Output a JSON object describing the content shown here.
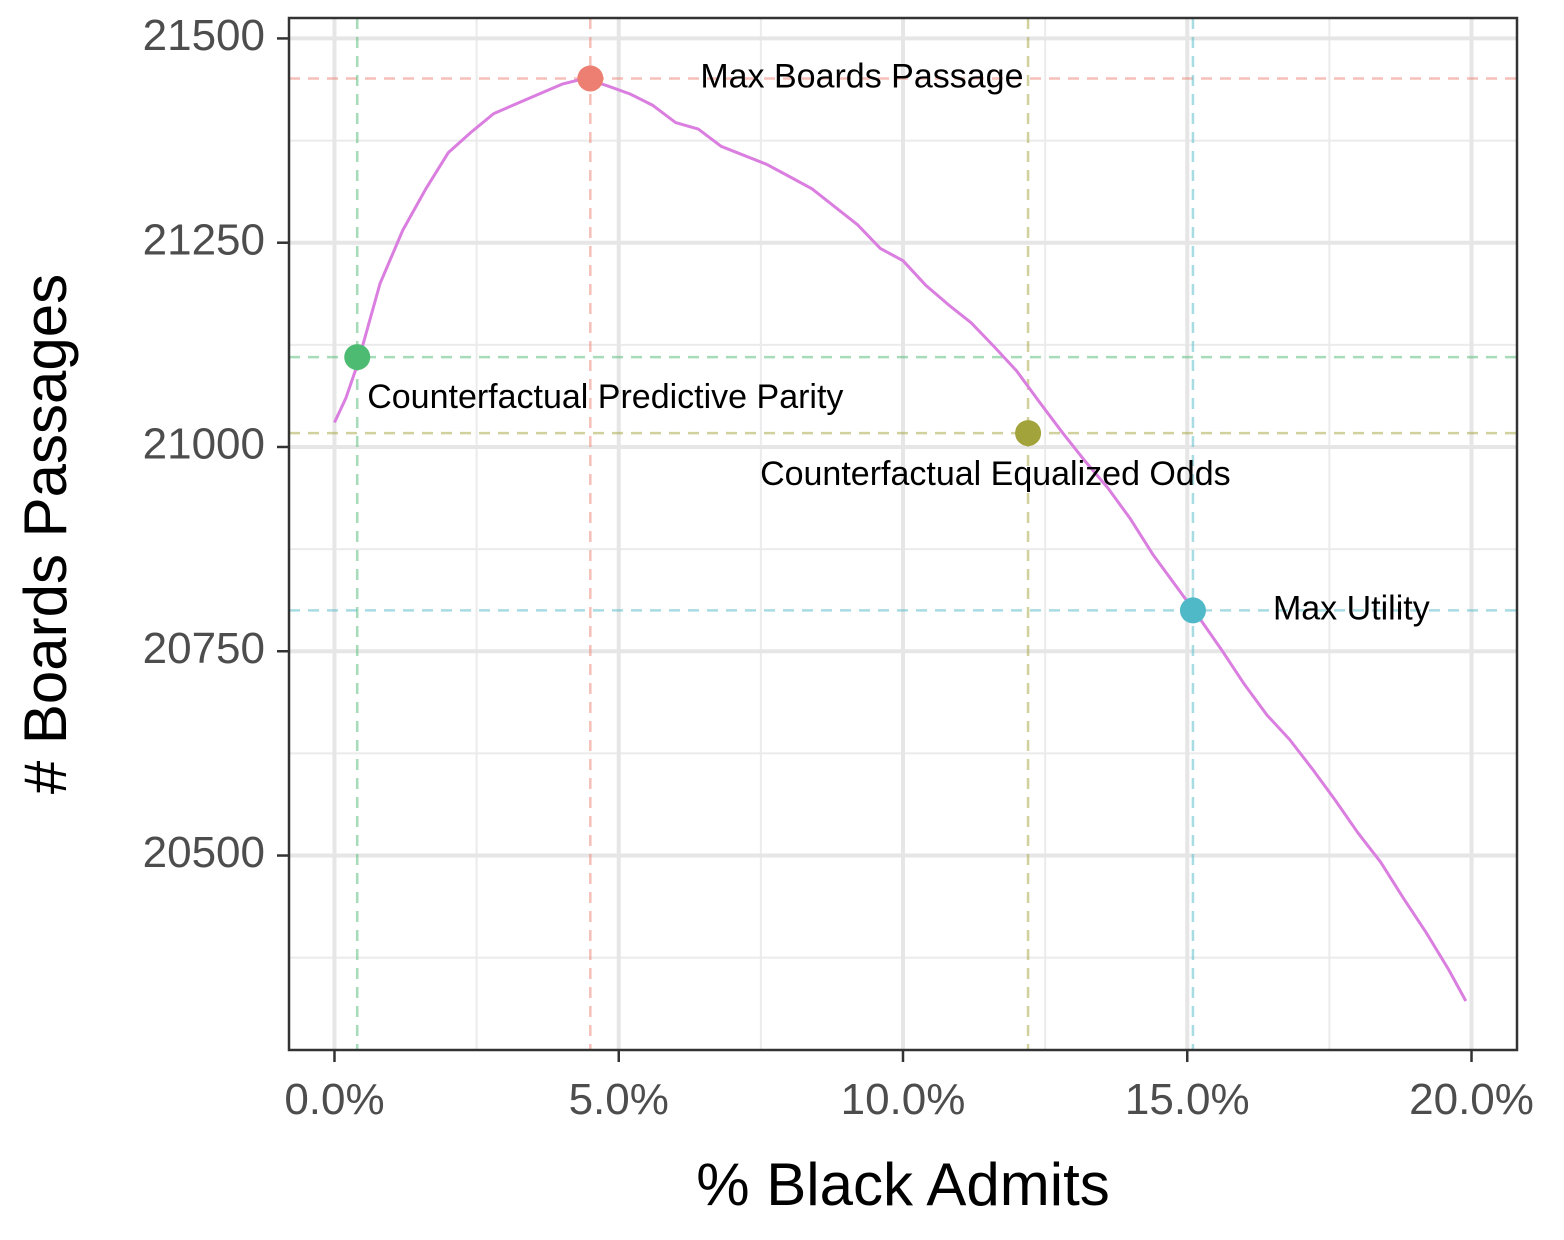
{
  "chart_data": {
    "type": "line",
    "xlabel": "% Black Admits",
    "ylabel": "# Boards Passages",
    "xlim": [
      -0.8,
      20.8
    ],
    "ylim": [
      20262,
      21525
    ],
    "x_ticks": [
      0,
      5,
      10,
      15,
      20
    ],
    "x_tick_labels": [
      "0.0%",
      "5.0%",
      "10.0%",
      "15.0%",
      "20.0%"
    ],
    "x_minor_ticks": [
      2.5,
      7.5,
      12.5,
      17.5
    ],
    "y_ticks": [
      20500,
      20750,
      21000,
      21250,
      21500
    ],
    "y_tick_labels": [
      "20500",
      "20750",
      "21000",
      "21250",
      "21500"
    ],
    "y_minor_ticks": [
      20375,
      20625,
      20875,
      21125,
      21375
    ],
    "grid": true,
    "series": [
      {
        "color": "#da7ee0",
        "x": [
          0.0,
          0.2,
          0.4,
          0.6,
          0.8,
          1.2,
          1.6,
          2.0,
          2.4,
          2.8,
          3.2,
          3.6,
          4.0,
          4.4,
          4.8,
          5.2,
          5.6,
          6.0,
          6.4,
          6.8,
          7.2,
          7.6,
          8.0,
          8.4,
          8.8,
          9.2,
          9.6,
          10.0,
          10.4,
          10.8,
          11.2,
          11.6,
          12.0,
          12.4,
          12.8,
          13.2,
          13.6,
          14.0,
          14.4,
          14.8,
          15.2,
          15.6,
          16.0,
          16.4,
          16.8,
          17.2,
          17.6,
          18.0,
          18.4,
          18.8,
          19.2,
          19.6,
          19.9
        ],
        "y": [
          21030,
          21060,
          21100,
          21150,
          21200,
          21265,
          21315,
          21360,
          21385,
          21408,
          21420,
          21432,
          21444,
          21451,
          21442,
          21432,
          21418,
          21397,
          21389,
          21368,
          21357,
          21346,
          21331,
          21316,
          21294,
          21272,
          21243,
          21228,
          21198,
          21174,
          21152,
          21123,
          21093,
          21055,
          21018,
          20983,
          20950,
          20912,
          20868,
          20830,
          20792,
          20752,
          20710,
          20672,
          20642,
          20606,
          20568,
          20528,
          20492,
          20448,
          20406,
          20360,
          20322
        ]
      }
    ],
    "points": [
      {
        "label": "Max Boards Passage",
        "x": 4.5,
        "y": 21451,
        "color": "#ed7f72"
      },
      {
        "label": "Counterfactual Predictive Parity",
        "x": 0.4,
        "y": 21110,
        "color": "#4dbc72"
      },
      {
        "label": "Counterfactual Equalized Odds",
        "x": 12.2,
        "y": 21017,
        "color": "#a2a33b"
      },
      {
        "label": "Max Utility",
        "x": 15.1,
        "y": 20800,
        "color": "#50b9c8"
      }
    ]
  }
}
